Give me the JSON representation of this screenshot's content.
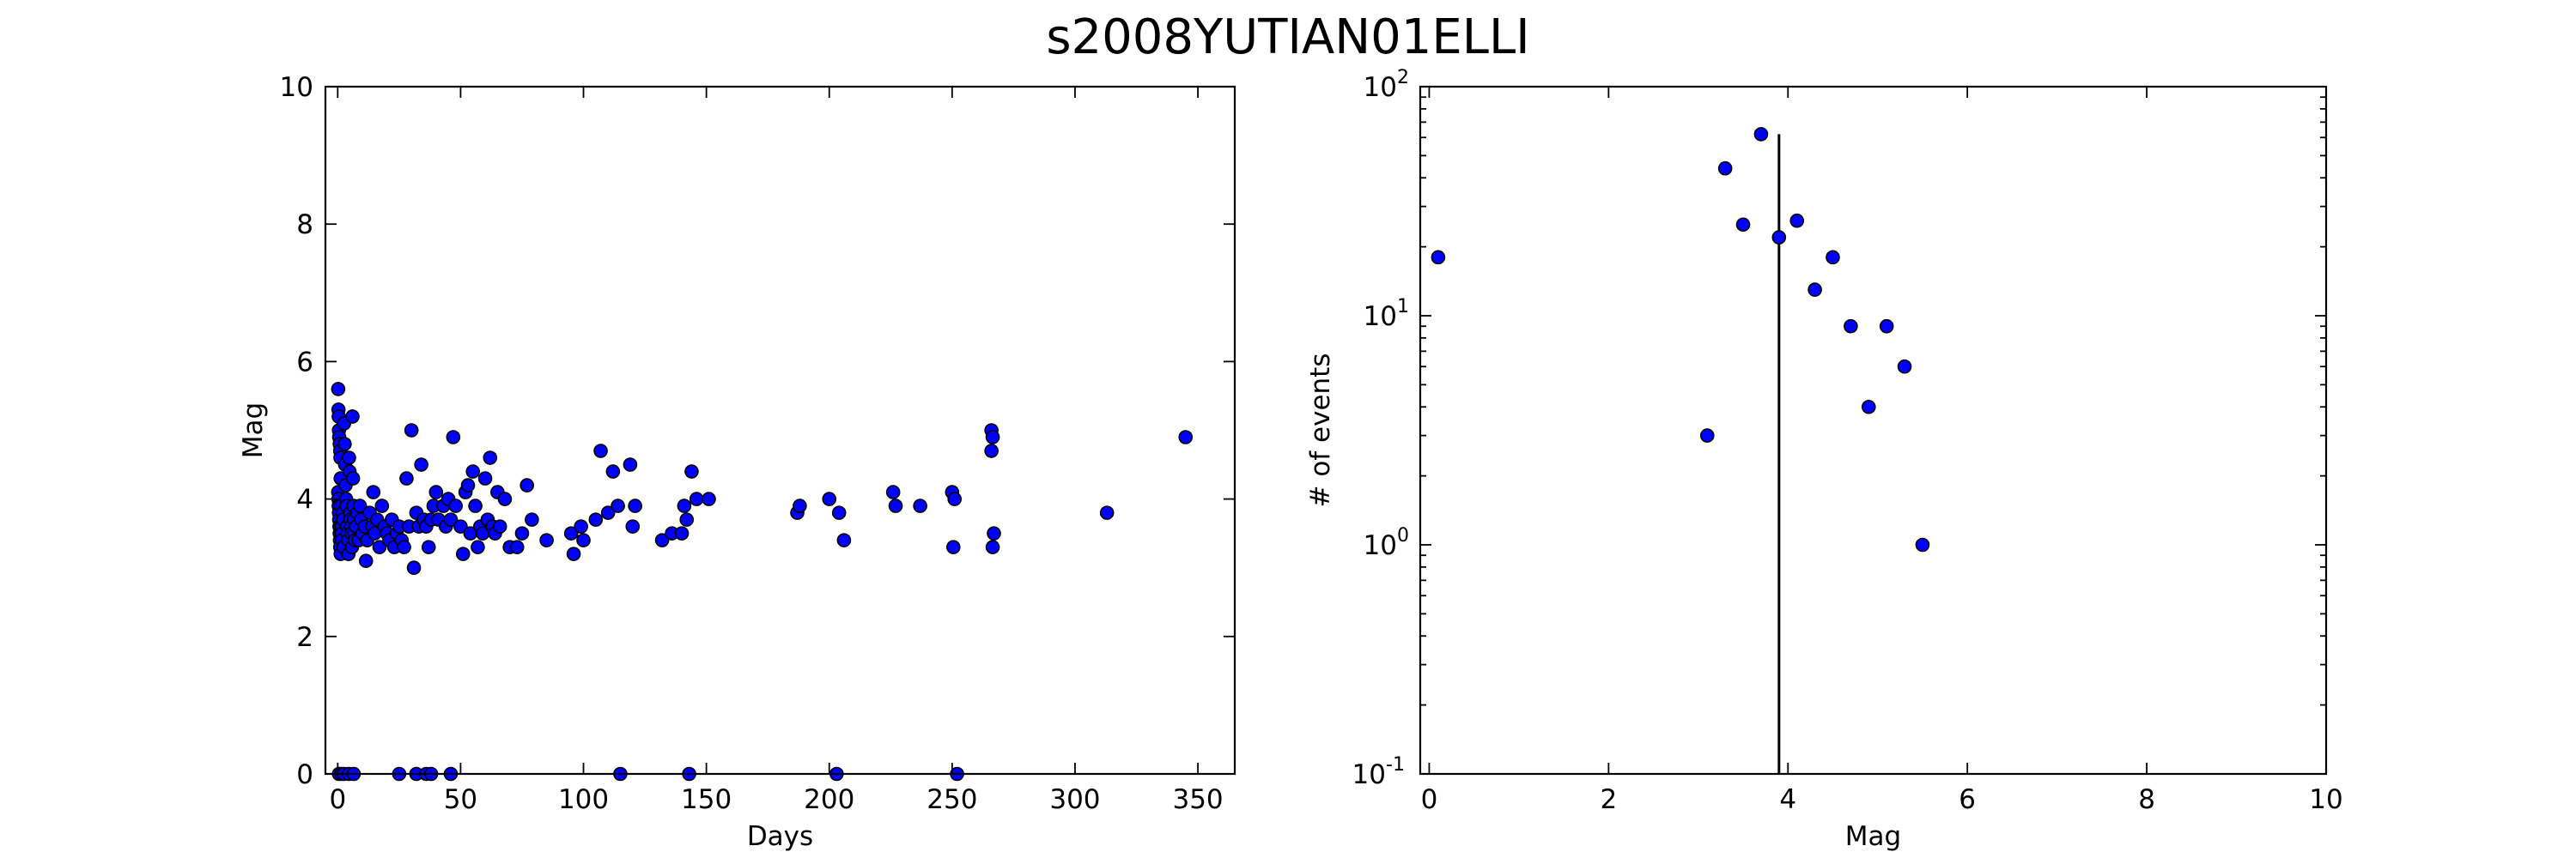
{
  "figure_title": "s2008YUTIAN01ELLI",
  "chart_data": [
    {
      "type": "scatter",
      "title": "",
      "xlabel": "Days",
      "ylabel": "Mag",
      "xlim": [
        -5,
        365
      ],
      "ylim": [
        0,
        10
      ],
      "xticks": [
        0,
        50,
        100,
        150,
        200,
        250,
        300,
        350
      ],
      "yticks": [
        0,
        2,
        4,
        6,
        8,
        10
      ],
      "grid": false,
      "marker_color": "#0000ff",
      "points": [
        [
          0.2,
          5.6
        ],
        [
          0.3,
          5.3
        ],
        [
          0.4,
          5.2
        ],
        [
          0.5,
          5.0
        ],
        [
          0.6,
          4.9
        ],
        [
          0.8,
          4.8
        ],
        [
          1.0,
          4.7
        ],
        [
          1.1,
          4.6
        ],
        [
          1.2,
          4.3
        ],
        [
          0.2,
          4.1
        ],
        [
          0.3,
          4.0
        ],
        [
          0.4,
          3.9
        ],
        [
          0.5,
          3.8
        ],
        [
          0.6,
          3.7
        ],
        [
          0.7,
          3.6
        ],
        [
          0.8,
          3.5
        ],
        [
          0.9,
          3.4
        ],
        [
          1.0,
          3.3
        ],
        [
          1.2,
          3.2
        ],
        [
          1.3,
          3.9
        ],
        [
          1.5,
          3.6
        ],
        [
          1.6,
          3.5
        ],
        [
          1.8,
          3.4
        ],
        [
          2.0,
          3.8
        ],
        [
          2.2,
          3.7
        ],
        [
          2.4,
          3.3
        ],
        [
          2.6,
          5.1
        ],
        [
          2.8,
          4.8
        ],
        [
          3.0,
          4.5
        ],
        [
          3.2,
          4.2
        ],
        [
          3.4,
          4.0
        ],
        [
          3.6,
          3.9
        ],
        [
          3.8,
          3.6
        ],
        [
          4.0,
          3.5
        ],
        [
          4.2,
          3.4
        ],
        [
          4.4,
          3.2
        ],
        [
          4.6,
          4.6
        ],
        [
          4.8,
          4.4
        ],
        [
          5.0,
          3.8
        ],
        [
          5.2,
          3.7
        ],
        [
          5.4,
          3.6
        ],
        [
          5.6,
          3.5
        ],
        [
          5.8,
          3.3
        ],
        [
          6.0,
          5.2
        ],
        [
          6.2,
          4.3
        ],
        [
          6.4,
          3.9
        ],
        [
          6.6,
          3.7
        ],
        [
          6.8,
          3.5
        ],
        [
          7.0,
          3.4
        ],
        [
          7.5,
          3.6
        ],
        [
          8.0,
          3.8
        ],
        [
          8.5,
          3.4
        ],
        [
          9.0,
          3.9
        ],
        [
          9.5,
          3.7
        ],
        [
          10.0,
          3.5
        ],
        [
          11.0,
          3.6
        ],
        [
          11.5,
          3.1
        ],
        [
          12.0,
          3.4
        ],
        [
          13.0,
          3.8
        ],
        [
          14.0,
          3.6
        ],
        [
          14.5,
          4.1
        ],
        [
          15.0,
          3.5
        ],
        [
          16.0,
          3.7
        ],
        [
          17.0,
          3.3
        ],
        [
          18.0,
          3.9
        ],
        [
          19.0,
          3.6
        ],
        [
          20.0,
          3.5
        ],
        [
          21.0,
          3.4
        ],
        [
          22.0,
          3.7
        ],
        [
          23.0,
          3.3
        ],
        [
          24.0,
          3.5
        ],
        [
          25.0,
          3.6
        ],
        [
          26.0,
          3.4
        ],
        [
          27.0,
          3.3
        ],
        [
          28.0,
          4.3
        ],
        [
          29.0,
          3.6
        ],
        [
          30.0,
          5.0
        ],
        [
          31.0,
          3.0
        ],
        [
          32.0,
          3.8
        ],
        [
          33.0,
          3.6
        ],
        [
          34.0,
          4.5
        ],
        [
          35.0,
          3.7
        ],
        [
          36.0,
          3.6
        ],
        [
          37.0,
          3.3
        ],
        [
          38.0,
          3.7
        ],
        [
          39.0,
          3.9
        ],
        [
          40.0,
          4.1
        ],
        [
          41.0,
          3.7
        ],
        [
          43.0,
          3.9
        ],
        [
          44.0,
          3.6
        ],
        [
          45.0,
          4.0
        ],
        [
          46.0,
          3.7
        ],
        [
          47.0,
          4.9
        ],
        [
          48.0,
          3.9
        ],
        [
          50.0,
          3.6
        ],
        [
          51.0,
          3.2
        ],
        [
          52.0,
          4.1
        ],
        [
          53.0,
          4.2
        ],
        [
          54.0,
          3.5
        ],
        [
          55.0,
          4.4
        ],
        [
          56.0,
          3.9
        ],
        [
          57.0,
          3.3
        ],
        [
          58.0,
          3.6
        ],
        [
          59.0,
          3.5
        ],
        [
          60.0,
          4.3
        ],
        [
          61.0,
          3.7
        ],
        [
          62.0,
          4.6
        ],
        [
          63.0,
          3.6
        ],
        [
          64.0,
          3.5
        ],
        [
          65.0,
          4.1
        ],
        [
          66.0,
          3.6
        ],
        [
          68.0,
          4.0
        ],
        [
          70.0,
          3.3
        ],
        [
          73.0,
          3.3
        ],
        [
          75.0,
          3.5
        ],
        [
          77.0,
          4.2
        ],
        [
          79.0,
          3.7
        ],
        [
          85.0,
          3.4
        ],
        [
          95.0,
          3.5
        ],
        [
          96.0,
          3.2
        ],
        [
          99.0,
          3.6
        ],
        [
          100.0,
          3.4
        ],
        [
          105.0,
          3.7
        ],
        [
          107.0,
          4.7
        ],
        [
          110.0,
          3.8
        ],
        [
          112.0,
          4.4
        ],
        [
          114.0,
          3.9
        ],
        [
          119.0,
          4.5
        ],
        [
          120.0,
          3.6
        ],
        [
          121.0,
          3.9
        ],
        [
          132.0,
          3.4
        ],
        [
          136.0,
          3.5
        ],
        [
          140.0,
          3.5
        ],
        [
          141.0,
          3.9
        ],
        [
          142.0,
          3.7
        ],
        [
          144.0,
          4.4
        ],
        [
          146.0,
          4.0
        ],
        [
          151.0,
          4.0
        ],
        [
          187.0,
          3.8
        ],
        [
          188.0,
          3.9
        ],
        [
          200.0,
          4.0
        ],
        [
          204.0,
          3.8
        ],
        [
          206.0,
          3.4
        ],
        [
          226.0,
          4.1
        ],
        [
          227.0,
          3.9
        ],
        [
          237.0,
          3.9
        ],
        [
          250.0,
          4.1
        ],
        [
          251.0,
          4.0
        ],
        [
          250.5,
          3.3
        ],
        [
          266.0,
          5.0
        ],
        [
          266.5,
          4.9
        ],
        [
          266.0,
          4.7
        ],
        [
          267.0,
          3.5
        ],
        [
          266.5,
          3.3
        ],
        [
          313.0,
          3.8
        ],
        [
          345.0,
          4.9
        ],
        [
          0.5,
          0.0
        ],
        [
          1.5,
          0.0
        ],
        [
          2.5,
          0.0
        ],
        [
          4.5,
          0.0
        ],
        [
          6.5,
          0.0
        ],
        [
          25.0,
          0.0
        ],
        [
          32.0,
          0.0
        ],
        [
          36.0,
          0.0
        ],
        [
          38.0,
          0.0
        ],
        [
          46.0,
          0.0
        ],
        [
          115.0,
          0.0
        ],
        [
          143.0,
          0.0
        ],
        [
          203.0,
          0.0
        ],
        [
          252.0,
          0.0
        ]
      ]
    },
    {
      "type": "scatter",
      "title": "",
      "xlabel": "Mag",
      "ylabel": "# of events",
      "xlim": [
        -0.1,
        10
      ],
      "ylim": [
        0.1,
        100
      ],
      "yscale": "log",
      "xticks": [
        0,
        2,
        4,
        6,
        8,
        10
      ],
      "yticks": [
        {
          "value": 0.1,
          "base": "10",
          "exp": "-1"
        },
        {
          "value": 1,
          "base": "10",
          "exp": "0"
        },
        {
          "value": 10,
          "base": "10",
          "exp": "1"
        },
        {
          "value": 100,
          "base": "10",
          "exp": "2"
        }
      ],
      "grid": false,
      "marker_color": "#0000ff",
      "points": [
        [
          0.1,
          18
        ],
        [
          3.1,
          3
        ],
        [
          3.3,
          44
        ],
        [
          3.5,
          25
        ],
        [
          3.7,
          62
        ],
        [
          3.9,
          22
        ],
        [
          4.1,
          26
        ],
        [
          4.3,
          13
        ],
        [
          4.5,
          18
        ],
        [
          4.7,
          9
        ],
        [
          4.9,
          4
        ],
        [
          5.1,
          9
        ],
        [
          5.3,
          6
        ],
        [
          5.5,
          1
        ]
      ],
      "vline": {
        "x": 3.9,
        "y_top": 62
      }
    }
  ]
}
